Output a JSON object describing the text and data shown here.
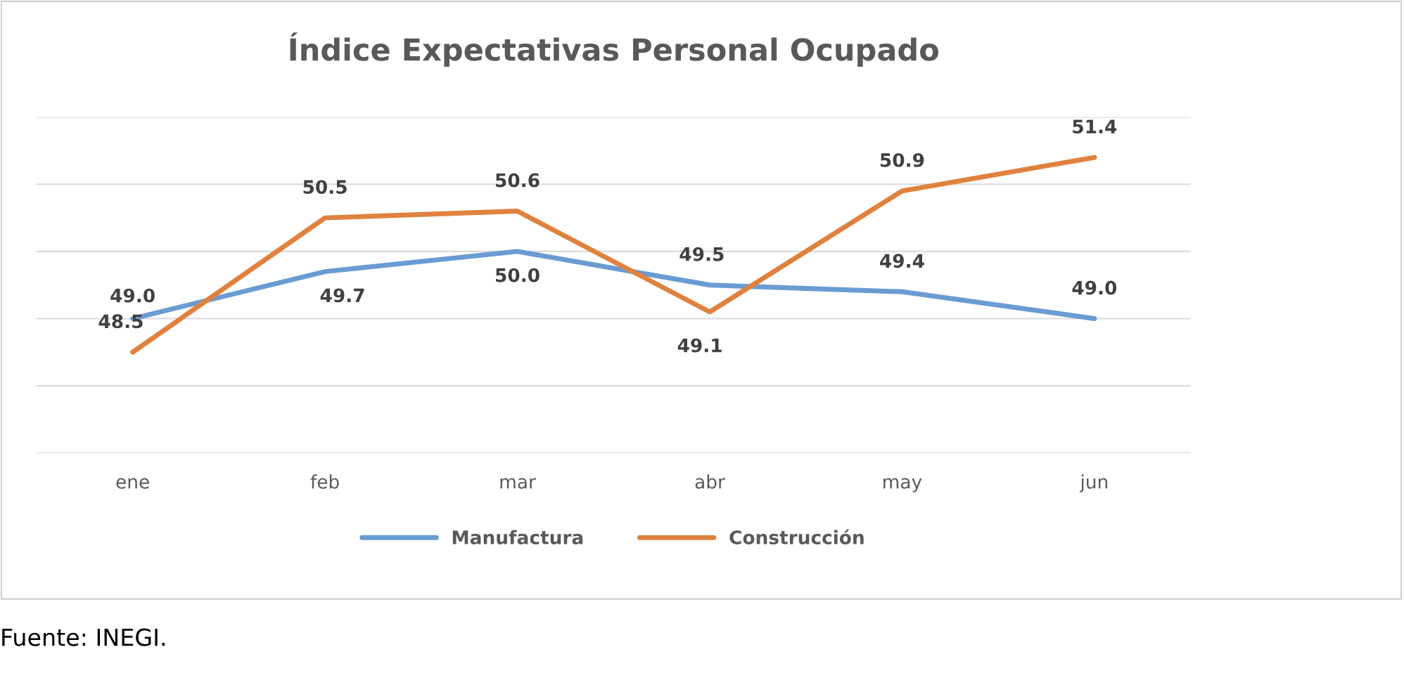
{
  "chart_data": {
    "type": "line",
    "title": "Índice Expectativas Personal Ocupado",
    "categories": [
      "ene",
      "feb",
      "mar",
      "abr",
      "may",
      "jun"
    ],
    "series": [
      {
        "name": "Manufactura",
        "color": "#6a9bd3",
        "values": [
          49.0,
          49.7,
          50.0,
          49.5,
          49.4,
          49.0
        ],
        "value_labels": [
          "49.0",
          "49.7",
          "50.0",
          "49.5",
          "49.4",
          "49.0"
        ]
      },
      {
        "name": "Construcción",
        "color": "#e0823f",
        "values": [
          48.5,
          50.5,
          50.6,
          49.1,
          50.9,
          51.4
        ],
        "value_labels": [
          "48.5",
          "50.5",
          "50.6",
          "49.1",
          "50.9",
          "51.4"
        ]
      }
    ],
    "ylim": [
      47,
      52
    ],
    "yticks": [
      {
        "value": 47,
        "label": null
      },
      {
        "value": 48,
        "label": null
      },
      {
        "value": 49,
        "label": null
      },
      {
        "value": 50,
        "label": null
      },
      {
        "value": 51,
        "label": null
      },
      {
        "value": 52,
        "label": null
      }
    ],
    "tick_labels": "x",
    "grid": "y",
    "legend": "bottom",
    "marker": "none",
    "line_style": "solid",
    "annotations": [
      "Fuente: INEGI."
    ]
  }
}
